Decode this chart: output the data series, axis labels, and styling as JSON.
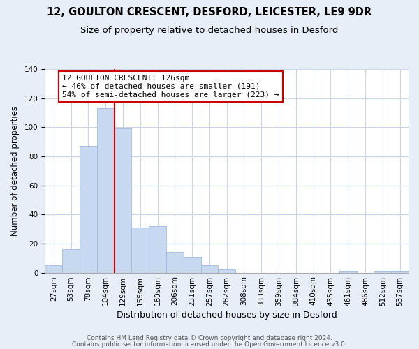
{
  "title1": "12, GOULTON CRESCENT, DESFORD, LEICESTER, LE9 9DR",
  "title2": "Size of property relative to detached houses in Desford",
  "xlabel": "Distribution of detached houses by size in Desford",
  "ylabel": "Number of detached properties",
  "bar_labels": [
    "27sqm",
    "53sqm",
    "78sqm",
    "104sqm",
    "129sqm",
    "155sqm",
    "180sqm",
    "206sqm",
    "231sqm",
    "257sqm",
    "282sqm",
    "308sqm",
    "333sqm",
    "359sqm",
    "384sqm",
    "410sqm",
    "435sqm",
    "461sqm",
    "486sqm",
    "512sqm",
    "537sqm"
  ],
  "bar_values": [
    5,
    16,
    87,
    113,
    99,
    31,
    32,
    14,
    11,
    5,
    2,
    0,
    0,
    0,
    0,
    0,
    0,
    1,
    0,
    1,
    1
  ],
  "bar_color": "#c6d9f0",
  "bar_edge_color": "#a0b8d8",
  "vline_x_index": 3,
  "vline_color": "#cc0000",
  "annotation_line1": "12 GOULTON CRESCENT: 126sqm",
  "annotation_line2": "← 46% of detached houses are smaller (191)",
  "annotation_line3": "54% of semi-detached houses are larger (223) →",
  "annotation_box_facecolor": "#ffffff",
  "annotation_box_edgecolor": "#cc0000",
  "ylim": [
    0,
    140
  ],
  "yticks": [
    0,
    20,
    40,
    60,
    80,
    100,
    120,
    140
  ],
  "footer1": "Contains HM Land Registry data © Crown copyright and database right 2024.",
  "footer2": "Contains public sector information licensed under the Open Government Licence v3.0.",
  "background_color": "#e8eef8",
  "plot_background_color": "#ffffff",
  "grid_color": "#c8d4e8",
  "title1_fontsize": 10.5,
  "title2_fontsize": 9.5,
  "xlabel_fontsize": 9,
  "ylabel_fontsize": 8.5,
  "tick_fontsize": 7.5,
  "annotation_fontsize": 8,
  "footer_fontsize": 6.5
}
